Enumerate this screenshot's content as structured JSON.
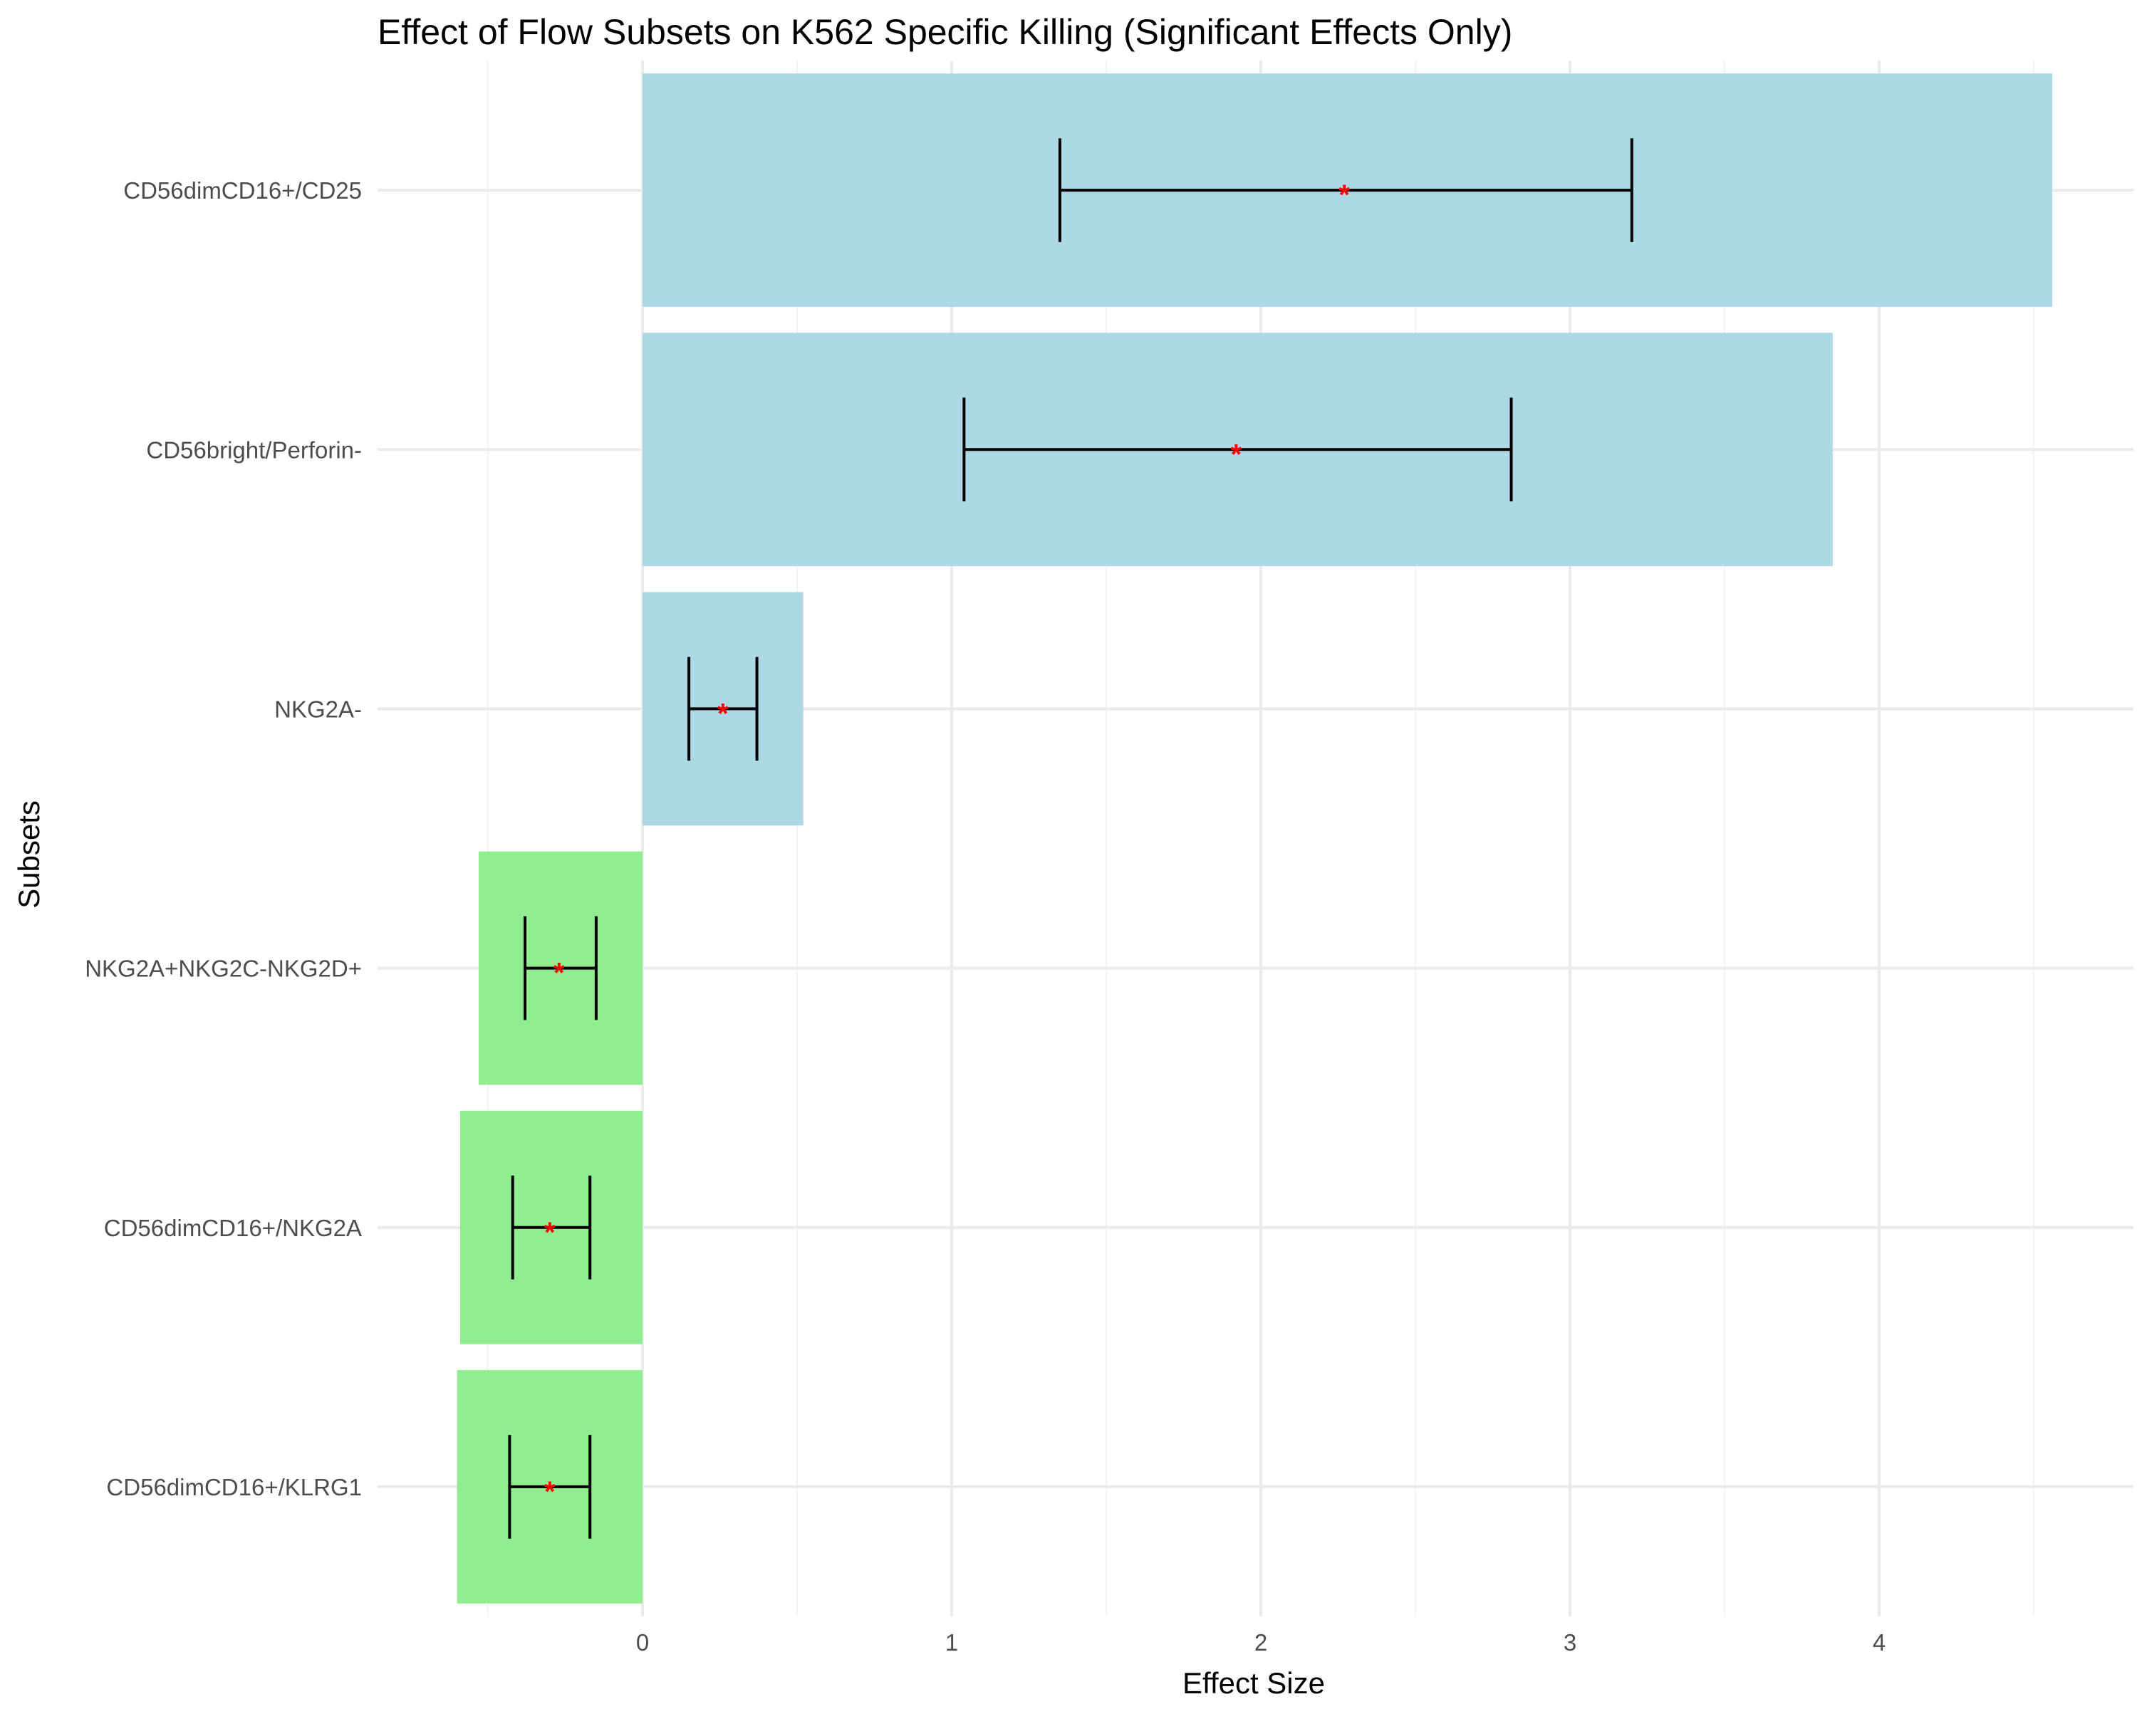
{
  "chart_data": {
    "type": "bar",
    "orientation": "horizontal",
    "title": "Effect of Flow Subsets on K562 Specific Killing (Significant Effects Only)",
    "xlabel": "Effect Size",
    "ylabel": "Subsets",
    "xlim": [
      -0.6,
      4.8
    ],
    "x_ticks": [
      0,
      1,
      2,
      3,
      4
    ],
    "x_tick_labels": [
      "0",
      "1",
      "2",
      "3",
      "4"
    ],
    "grid": true,
    "legend": "none",
    "categories": [
      "CD56dimCD16+/CD25",
      "CD56bright/Perforin-",
      "NKG2A-",
      "NKG2A+NKG2C-NKG2D+",
      "CD56dimCD16+/NKG2A",
      "CD56dimCD16+/KLRG1"
    ],
    "values": [
      4.56,
      3.85,
      0.52,
      -0.53,
      -0.59,
      -0.6
    ],
    "estimates": [
      2.27,
      1.92,
      0.26,
      -0.27,
      -0.3,
      -0.3
    ],
    "ci_lower": [
      1.35,
      1.04,
      0.15,
      -0.38,
      -0.42,
      -0.43
    ],
    "ci_upper": [
      3.2,
      2.81,
      0.37,
      -0.15,
      -0.17,
      -0.17
    ],
    "annotations": [
      "*",
      "*",
      "*",
      "*",
      "*",
      "*"
    ],
    "colors": {
      "positive": "#add8e6",
      "negative": "#90ee90",
      "errorbar": "#000000",
      "marker": "#ff0000",
      "grid_major": "#ebebeb",
      "grid_minor": "#f4f4f4"
    }
  }
}
